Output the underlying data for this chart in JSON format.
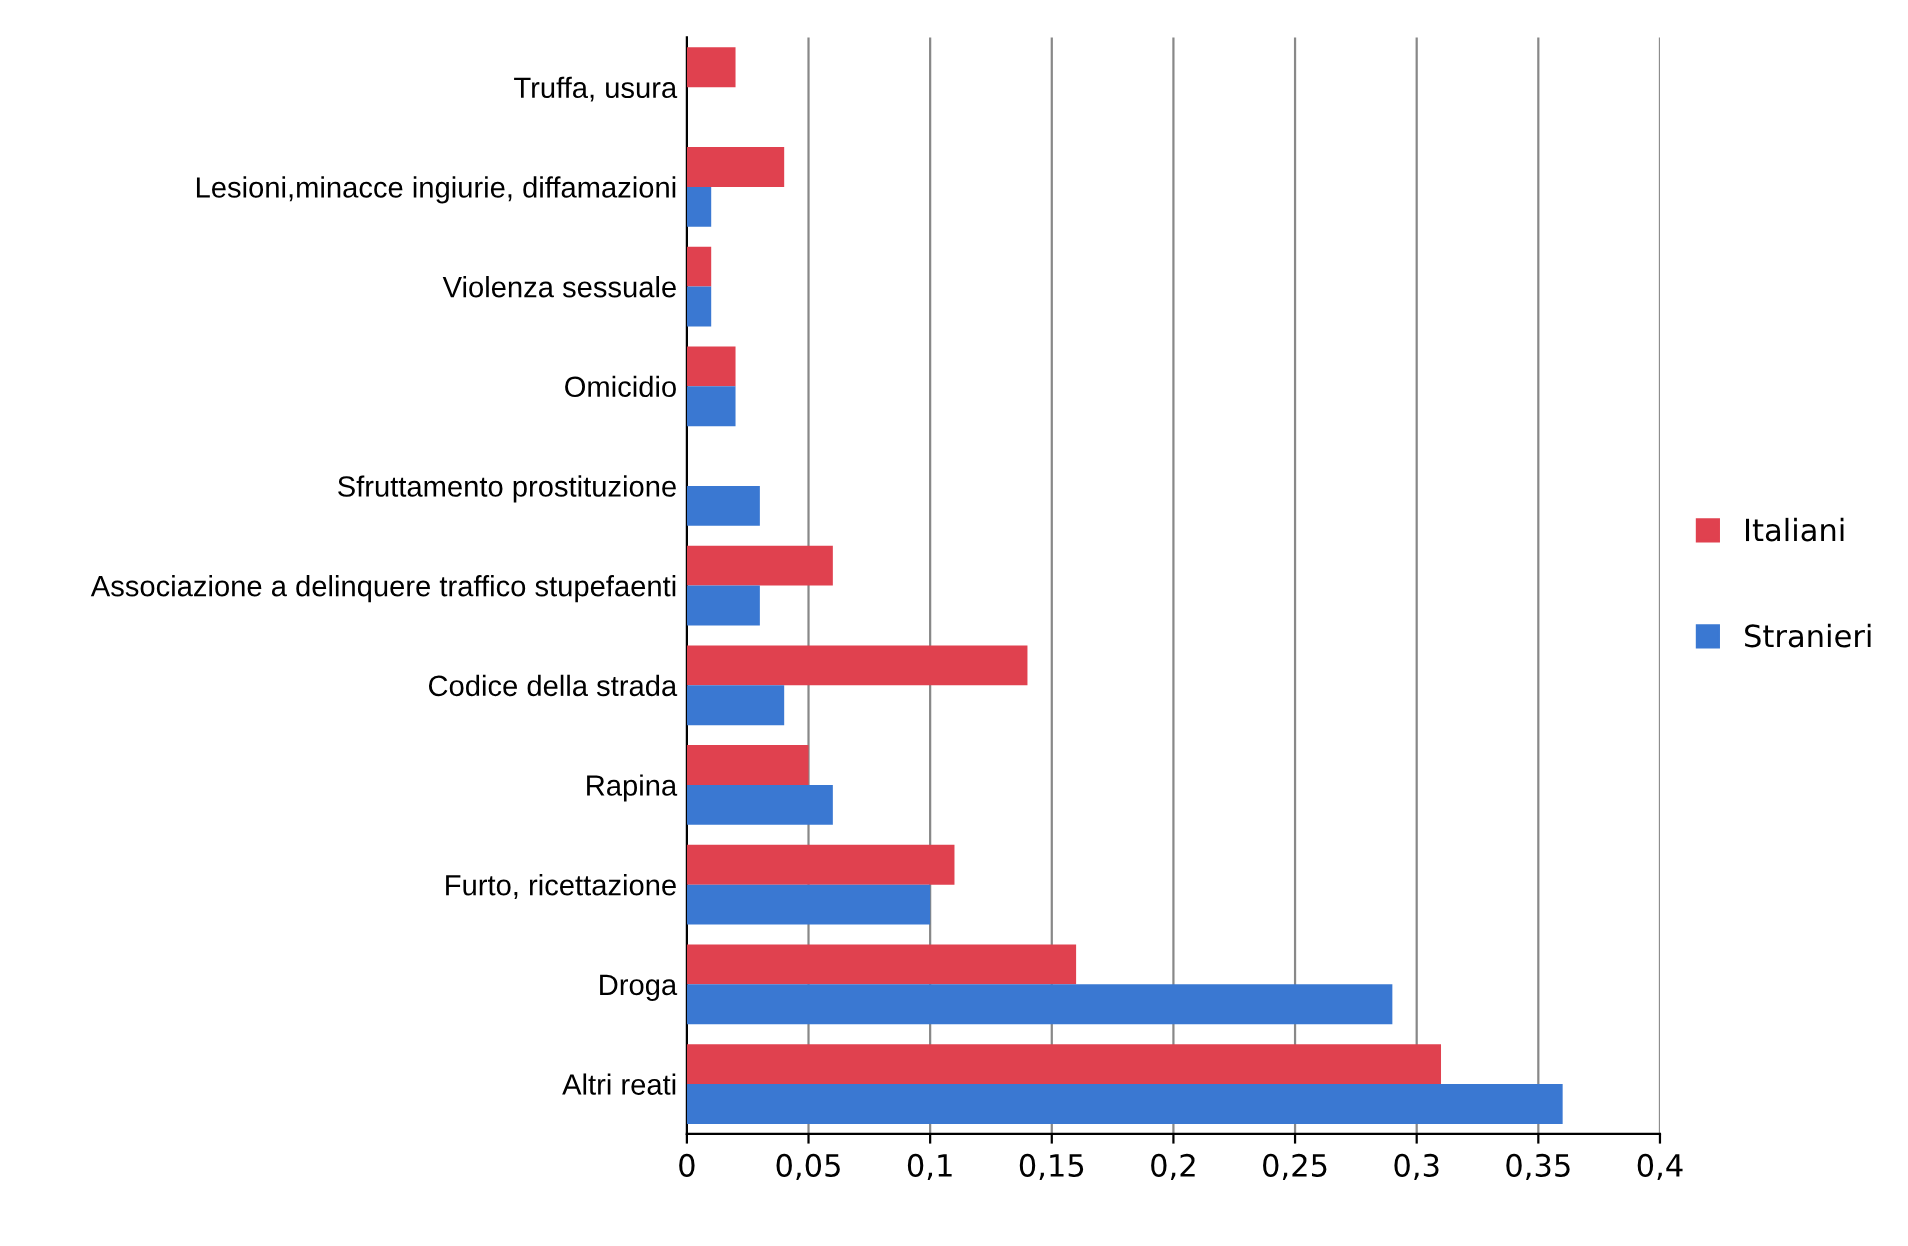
{
  "chart_data": {
    "type": "bar",
    "orientation": "horizontal",
    "categories": [
      "Truffa, usura",
      "Lesioni,minacce ingiurie, diffamazioni",
      "Violenza sessuale",
      "Omicidio",
      "Sfruttamento prostituzione",
      "Associazione a delinquere traffico stupefaenti",
      "Codice della strada",
      "Rapina",
      "Furto, ricettazione",
      "Droga",
      "Altri reati"
    ],
    "series": [
      {
        "name": "Italiani",
        "color": "#e0414f",
        "values": [
          0.02,
          0.04,
          0.01,
          0.02,
          null,
          0.06,
          0.14,
          0.05,
          0.11,
          0.16,
          0.31
        ]
      },
      {
        "name": "Stranieri",
        "color": "#3a78d2",
        "values": [
          null,
          0.01,
          0.01,
          0.02,
          0.03,
          0.03,
          0.04,
          0.06,
          0.1,
          0.29,
          0.36
        ]
      }
    ],
    "xlim": [
      0,
      0.4
    ],
    "xticks": [
      0,
      {
        "value": 0.05,
        "label": "0,05"
      },
      {
        "value": 0.1,
        "label": "0,1"
      },
      {
        "value": 0.15,
        "label": "0,15"
      },
      {
        "value": 0.2,
        "label": "0,2"
      },
      {
        "value": 0.25,
        "label": "0,25"
      },
      {
        "value": 0.3,
        "label": "0,3"
      },
      {
        "value": 0.35,
        "label": "0,35"
      },
      {
        "value": 0.4,
        "label": "0,4"
      }
    ],
    "grid": "x",
    "legend": "right"
  }
}
